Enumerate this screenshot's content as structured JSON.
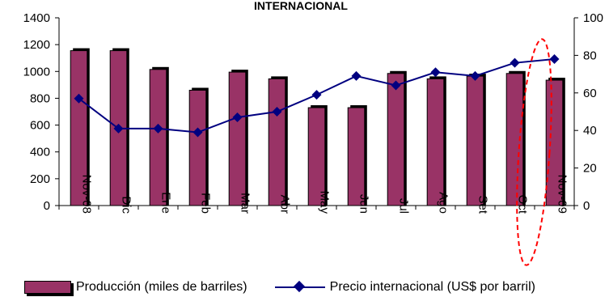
{
  "chart_data": {
    "type": "bar+line",
    "title": "INTERNACIONAL",
    "categories": [
      "Nov-08",
      "Dic",
      "Ene",
      "Feb",
      "Mar",
      "Abr",
      "May",
      "Jun",
      "Jul",
      "Ago",
      "Set",
      "Oct",
      "Nov-09"
    ],
    "category_labels_rotated": [
      "Nov-08",
      "Dic",
      "Ene",
      "Feb",
      "Mar",
      "Abr",
      "May",
      "Jun",
      "Jul",
      "Ago",
      "Set",
      "Oct",
      "Nov-09"
    ],
    "series": [
      {
        "name": "Producción (miles de barriles)",
        "type": "bar",
        "axis": "left",
        "color": "#993366",
        "values": [
          1155,
          1155,
          1015,
          860,
          995,
          945,
          730,
          730,
          985,
          945,
          965,
          985,
          935
        ]
      },
      {
        "name": "Precio internacional (US$ por barril)",
        "type": "line",
        "axis": "right",
        "color": "#000080",
        "values": [
          57,
          41,
          41,
          39,
          47,
          50,
          59,
          69,
          64,
          71,
          69,
          76,
          78
        ]
      }
    ],
    "y_left": {
      "min": 0,
      "max": 1400,
      "step": 200,
      "ticks": [
        "0",
        "200",
        "400",
        "600",
        "800",
        "1000",
        "1200",
        "1400"
      ]
    },
    "y_right": {
      "min": 0,
      "max": 100,
      "step": 20,
      "ticks": [
        "0",
        "20",
        "40",
        "60",
        "80",
        "100"
      ]
    },
    "highlight": {
      "category_index": 12,
      "color": "#ff0000",
      "style": "dashed-ellipse"
    },
    "legend": {
      "placement": "bottom",
      "items": [
        "Producción (miles de barriles)",
        "Precio internacional (US$ por barril)"
      ]
    },
    "grid": false
  }
}
